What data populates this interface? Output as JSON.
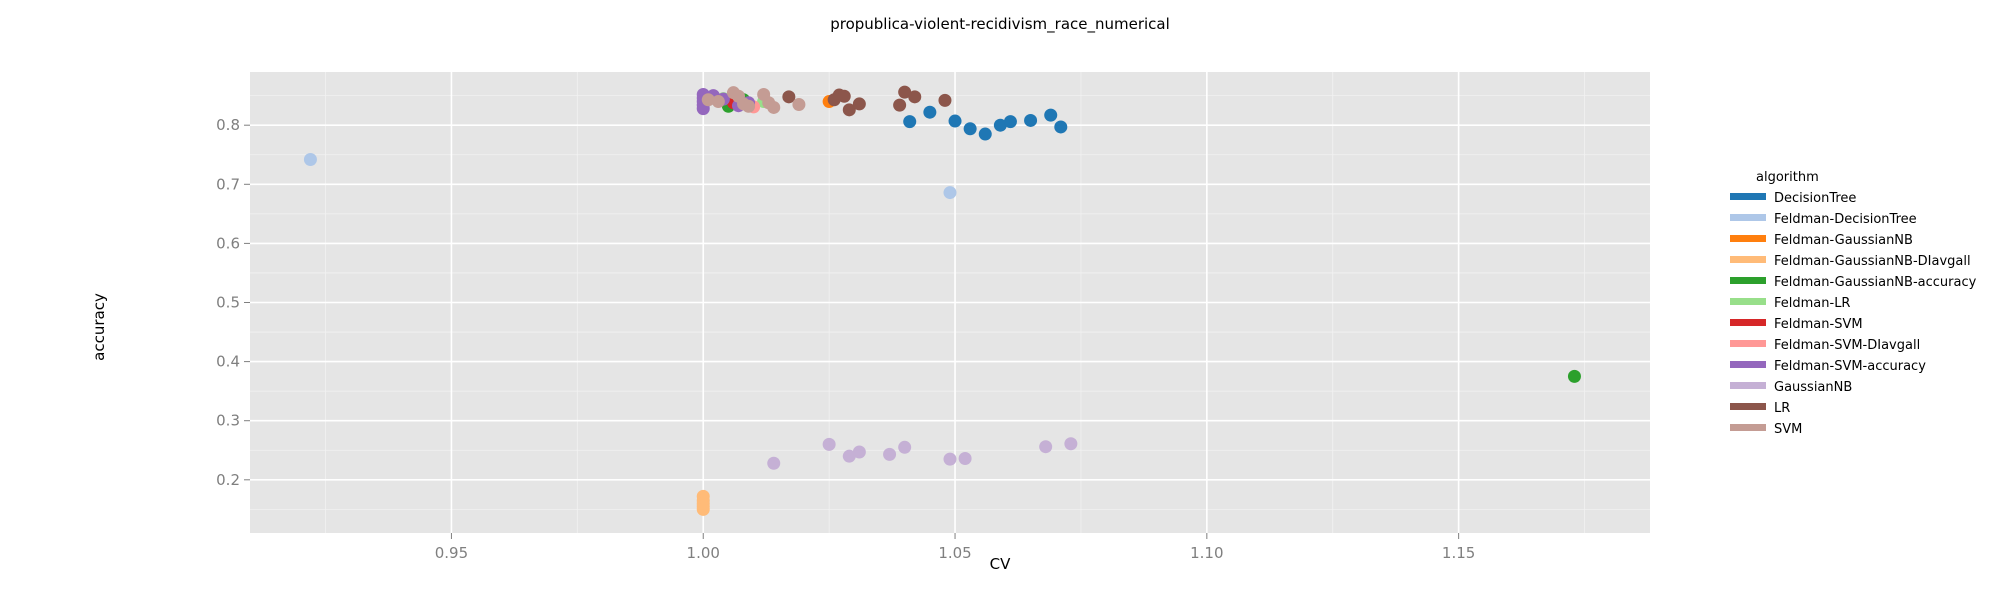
{
  "chart_data": {
    "type": "scatter",
    "title": "propublica-violent-recidivism_race_numerical",
    "xlabel": "CV",
    "ylabel": "accuracy",
    "xlim": [
      0.91,
      1.188
    ],
    "ylim": [
      0.11,
      0.89
    ],
    "x_ticks": [
      0.95,
      1.0,
      1.05,
      1.1,
      1.15
    ],
    "x_tick_labels": [
      "0.95",
      "1.00",
      "1.05",
      "1.10",
      "1.15"
    ],
    "y_ticks": [
      0.2,
      0.3,
      0.4,
      0.5,
      0.6,
      0.7,
      0.8
    ],
    "y_tick_labels": [
      "0.2",
      "0.3",
      "0.4",
      "0.5",
      "0.6",
      "0.7",
      "0.8"
    ],
    "grid": true,
    "legend_title": "algorithm",
    "legend_position": "right",
    "series": [
      {
        "name": "DecisionTree",
        "color": "#1f77b4",
        "points": [
          [
            1.041,
            0.806
          ],
          [
            1.045,
            0.822
          ],
          [
            1.05,
            0.807
          ],
          [
            1.053,
            0.794
          ],
          [
            1.056,
            0.785
          ],
          [
            1.059,
            0.8
          ],
          [
            1.061,
            0.806
          ],
          [
            1.065,
            0.808
          ],
          [
            1.069,
            0.817
          ],
          [
            1.071,
            0.797
          ]
        ]
      },
      {
        "name": "Feldman-DecisionTree",
        "color": "#aec7e8",
        "points": [
          [
            0.922,
            0.742
          ],
          [
            1.049,
            0.686
          ]
        ]
      },
      {
        "name": "Feldman-GaussianNB",
        "color": "#ff7f0e",
        "points": [
          [
            1.025,
            0.84
          ]
        ]
      },
      {
        "name": "Feldman-GaussianNB-DIavgall",
        "color": "#ffbb78",
        "points": [
          [
            1.0,
            0.172
          ],
          [
            1.0,
            0.165
          ],
          [
            1.0,
            0.16
          ],
          [
            1.0,
            0.155
          ],
          [
            1.0,
            0.15
          ]
        ]
      },
      {
        "name": "Feldman-GaussianNB-accuracy",
        "color": "#2ca02c",
        "points": [
          [
            1.173,
            0.375
          ],
          [
            1.005,
            0.832
          ],
          [
            1.008,
            0.843
          ]
        ]
      },
      {
        "name": "Feldman-LR",
        "color": "#98df8a",
        "points": [
          [
            1.004,
            0.845
          ],
          [
            1.012,
            0.84
          ]
        ]
      },
      {
        "name": "Feldman-SVM",
        "color": "#d62728",
        "points": [
          [
            1.006,
            0.838
          ]
        ]
      },
      {
        "name": "Feldman-SVM-DIavgall",
        "color": "#ff9896",
        "points": [
          [
            1.01,
            0.831
          ]
        ]
      },
      {
        "name": "Feldman-SVM-accuracy",
        "color": "#9467bd",
        "points": [
          [
            1.0,
            0.852
          ],
          [
            1.0,
            0.846
          ],
          [
            1.0,
            0.84
          ],
          [
            1.0,
            0.834
          ],
          [
            1.0,
            0.828
          ],
          [
            1.002,
            0.85
          ],
          [
            1.004,
            0.844
          ],
          [
            1.009,
            0.838
          ],
          [
            1.007,
            0.833
          ]
        ]
      },
      {
        "name": "GaussianNB",
        "color": "#c5b0d5",
        "points": [
          [
            1.014,
            0.228
          ],
          [
            1.025,
            0.26
          ],
          [
            1.029,
            0.24
          ],
          [
            1.031,
            0.247
          ],
          [
            1.037,
            0.243
          ],
          [
            1.04,
            0.255
          ],
          [
            1.049,
            0.235
          ],
          [
            1.052,
            0.236
          ],
          [
            1.068,
            0.256
          ],
          [
            1.073,
            0.261
          ]
        ]
      },
      {
        "name": "LR",
        "color": "#8c564b",
        "points": [
          [
            1.017,
            0.848
          ],
          [
            1.026,
            0.843
          ],
          [
            1.027,
            0.851
          ],
          [
            1.028,
            0.849
          ],
          [
            1.029,
            0.826
          ],
          [
            1.031,
            0.836
          ],
          [
            1.039,
            0.834
          ],
          [
            1.04,
            0.856
          ],
          [
            1.042,
            0.848
          ],
          [
            1.048,
            0.842
          ]
        ]
      },
      {
        "name": "SVM",
        "color": "#c49c94",
        "points": [
          [
            1.001,
            0.843
          ],
          [
            1.003,
            0.84
          ],
          [
            1.006,
            0.855
          ],
          [
            1.007,
            0.849
          ],
          [
            1.008,
            0.836
          ],
          [
            1.009,
            0.832
          ],
          [
            1.012,
            0.852
          ],
          [
            1.013,
            0.838
          ],
          [
            1.014,
            0.83
          ],
          [
            1.019,
            0.835
          ]
        ]
      }
    ]
  }
}
